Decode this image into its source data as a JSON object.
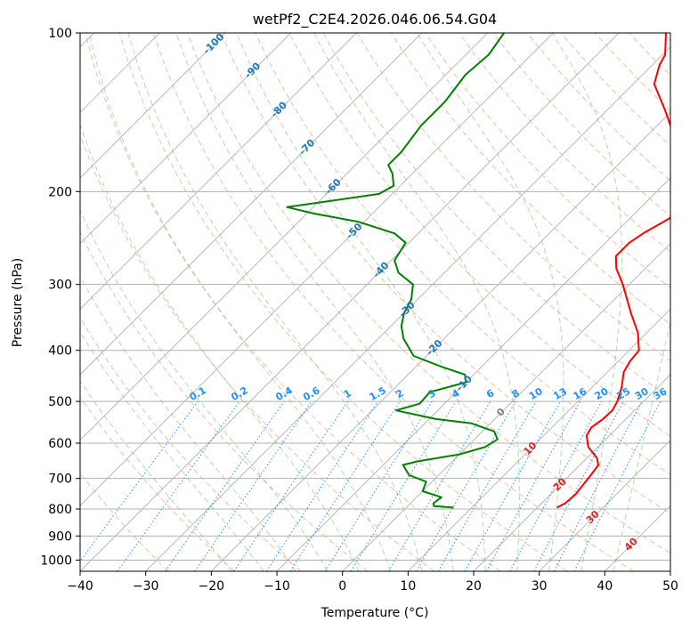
{
  "chart_data": {
    "type": "line",
    "chart_kind": "skew-T log-p diagram",
    "title": "wetPf2_C2E4.2026.046.06.54.G04",
    "xlabel": "Temperature (°C)",
    "ylabel": "Pressure (hPa)",
    "xlim": [
      -40,
      50
    ],
    "ylim": [
      1050,
      100
    ],
    "y_scale": "log",
    "grid": true,
    "x_ticks": [
      "−40",
      "−30",
      "−20",
      "−10",
      "0",
      "10",
      "20",
      "30",
      "40",
      "50"
    ],
    "y_ticks": [
      "100",
      "200",
      "300",
      "400",
      "500",
      "600",
      "700",
      "800",
      "900",
      "1000"
    ],
    "isotherm_labels": {
      "color": "#1f77b4",
      "values": [
        "-100",
        "-90",
        "-80",
        "-70",
        "-60",
        "-50",
        "-40",
        "-30",
        "-20",
        "-10"
      ]
    },
    "mixing_ratio_labels": {
      "color": "#1e90ff",
      "values": [
        "0.1",
        "0.2",
        "0.4",
        "0.6",
        "1",
        "1.5",
        "2",
        "3",
        "4",
        "6",
        "8",
        "10",
        "13",
        "16",
        "20",
        "25",
        "30",
        "36"
      ]
    },
    "warm_isotherm_labels": {
      "color": "#d62728",
      "zero_color": "#808080",
      "values": [
        "0",
        "10",
        "20",
        "30",
        "40"
      ]
    },
    "series": [
      {
        "color": "#ff0000",
        "points": [
          {
            "p": 795,
            "t": 23.0
          },
          {
            "p": 780,
            "t": 23.6
          },
          {
            "p": 750,
            "t": 23.8
          },
          {
            "p": 720,
            "t": 23.5
          },
          {
            "p": 690,
            "t": 23.2
          },
          {
            "p": 660,
            "t": 22.8
          },
          {
            "p": 640,
            "t": 21.5
          },
          {
            "p": 610,
            "t": 18.5
          },
          {
            "p": 580,
            "t": 16.5
          },
          {
            "p": 560,
            "t": 16.0
          },
          {
            "p": 540,
            "t": 16.5
          },
          {
            "p": 520,
            "t": 16.6
          },
          {
            "p": 500,
            "t": 16.0
          },
          {
            "p": 470,
            "t": 14.5
          },
          {
            "p": 440,
            "t": 12.5
          },
          {
            "p": 420,
            "t": 11.8
          },
          {
            "p": 400,
            "t": 11.5
          },
          {
            "p": 370,
            "t": 8.6
          },
          {
            "p": 340,
            "t": 4.6
          },
          {
            "p": 300,
            "t": -1.0
          },
          {
            "p": 280,
            "t": -4.4
          },
          {
            "p": 265,
            "t": -6.4
          },
          {
            "p": 250,
            "t": -6.4
          },
          {
            "p": 240,
            "t": -5.7
          },
          {
            "p": 225,
            "t": -4.0
          },
          {
            "p": 212,
            "t": -3.8
          },
          {
            "p": 200,
            "t": -6.2
          },
          {
            "p": 185,
            "t": -8.8
          },
          {
            "p": 170,
            "t": -12.0
          },
          {
            "p": 155,
            "t": -16.4
          },
          {
            "p": 140,
            "t": -21.2
          },
          {
            "p": 125,
            "t": -26.8
          },
          {
            "p": 115,
            "t": -28.9
          },
          {
            "p": 110,
            "t": -29.6
          },
          {
            "p": 100,
            "t": -32.8
          }
        ]
      },
      {
        "color": "#008000",
        "points": [
          {
            "p": 795,
            "t": 7.2
          },
          {
            "p": 790,
            "t": 4.0
          },
          {
            "p": 780,
            "t": 3.5
          },
          {
            "p": 760,
            "t": 3.8
          },
          {
            "p": 740,
            "t": 0.0
          },
          {
            "p": 710,
            "t": -0.9
          },
          {
            "p": 690,
            "t": -4.5
          },
          {
            "p": 660,
            "t": -7.0
          },
          {
            "p": 650,
            "t": -5.4
          },
          {
            "p": 630,
            "t": 0.0
          },
          {
            "p": 610,
            "t": 2.8
          },
          {
            "p": 590,
            "t": 3.5
          },
          {
            "p": 570,
            "t": 1.8
          },
          {
            "p": 550,
            "t": -3.0
          },
          {
            "p": 540,
            "t": -9.0
          },
          {
            "p": 520,
            "t": -16.4
          },
          {
            "p": 505,
            "t": -13.8
          },
          {
            "p": 480,
            "t": -14.0
          },
          {
            "p": 460,
            "t": -10.0
          },
          {
            "p": 445,
            "t": -11.3
          },
          {
            "p": 430,
            "t": -16.0
          },
          {
            "p": 410,
            "t": -22.0
          },
          {
            "p": 380,
            "t": -26.2
          },
          {
            "p": 360,
            "t": -28.4
          },
          {
            "p": 340,
            "t": -30.0
          },
          {
            "p": 320,
            "t": -31.0
          },
          {
            "p": 300,
            "t": -33.0
          },
          {
            "p": 285,
            "t": -37.0
          },
          {
            "p": 270,
            "t": -39.5
          },
          {
            "p": 250,
            "t": -40.5
          },
          {
            "p": 240,
            "t": -43.6
          },
          {
            "p": 228,
            "t": -51.0
          },
          {
            "p": 220,
            "t": -59.0
          },
          {
            "p": 214,
            "t": -64.0
          },
          {
            "p": 208,
            "t": -58.0
          },
          {
            "p": 202,
            "t": -52.0
          },
          {
            "p": 195,
            "t": -51.0
          },
          {
            "p": 185,
            "t": -53.0
          },
          {
            "p": 178,
            "t": -55.0
          },
          {
            "p": 168,
            "t": -55.0
          },
          {
            "p": 150,
            "t": -56.0
          },
          {
            "p": 135,
            "t": -56.0
          },
          {
            "p": 120,
            "t": -57.0
          },
          {
            "p": 110,
            "t": -56.5
          },
          {
            "p": 100,
            "t": -57.5
          }
        ]
      }
    ]
  }
}
